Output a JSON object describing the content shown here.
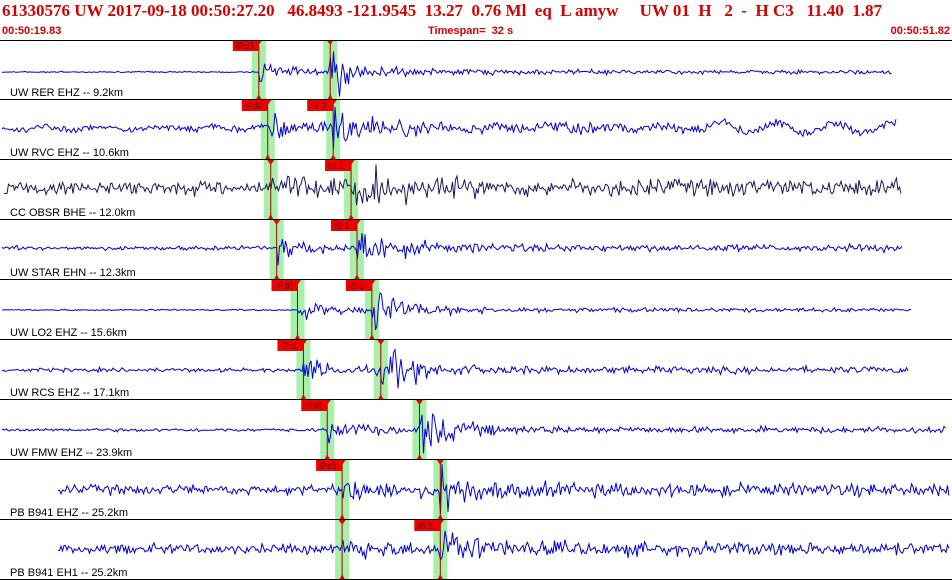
{
  "header": {
    "title": "61330576 UW 2017-09-18 00:50:27.20   46.8493 -121.9545  13.27  0.76 Ml  eq  L amyw     UW 01  H   2  -  H C3   11.40  1.87",
    "start_time": "00:50:19.83",
    "end_time": "00:50:51.82",
    "timespan_label": "Timespan=  32 s"
  },
  "colors": {
    "header_text": "#d40000",
    "trace": "#0000dd",
    "trace_broadband": "#1a1a5c",
    "pick_flag": "#ee0000",
    "pick_window": "#a8f0a8",
    "separator": "#000000"
  },
  "chart_data": {
    "type": "seismogram",
    "time_range": [
      "00:50:19.83",
      "00:50:51.82"
    ],
    "span_seconds": 32,
    "traces": [
      {
        "label": "UW RER EHZ -- 9.2km",
        "picks": [
          {
            "tag": "iPc0",
            "t": 8.7
          },
          {
            "tag": "",
            "t": 11.1
          }
        ],
        "broadband": false
      },
      {
        "label": "UW RVC EHZ -- 10.6km",
        "picks": [
          {
            "tag": "iPd0",
            "t": 9.0
          },
          {
            "tag": "iS 0",
            "t": 11.2
          }
        ],
        "broadband": false
      },
      {
        "label": "CC OBSR BHE -- 12.0km",
        "picks": [
          {
            "tag": "",
            "t": 9.1
          },
          {
            "tag": "iS 1",
            "t": 11.8
          }
        ],
        "broadband": true
      },
      {
        "label": "UW STAR EHN -- 12.3km",
        "picks": [
          {
            "tag": "",
            "t": 9.3
          },
          {
            "tag": "iS 1",
            "t": 12.0
          }
        ],
        "broadband": false
      },
      {
        "label": "UW LO2 EHZ -- 15.6km",
        "picks": [
          {
            "tag": "iPd0",
            "t": 10.0
          },
          {
            "tag": "iS 1",
            "t": 12.5
          }
        ],
        "broadband": false
      },
      {
        "label": "UW RCS EHZ -- 17.1km",
        "picks": [
          {
            "tag": "iPc1",
            "t": 10.2
          },
          {
            "tag": "",
            "t": 12.8
          }
        ],
        "broadband": false
      },
      {
        "label": "UW FMW EHZ -- 23.9km",
        "picks": [
          {
            "tag": "iPd0",
            "t": 11.0
          },
          {
            "tag": "",
            "t": 14.1
          }
        ],
        "broadband": false
      },
      {
        "label": "PB B941 EHZ -- 25.2km",
        "picks": [
          {
            "tag": "iPc1",
            "t": 11.5
          },
          {
            "tag": "",
            "t": 14.8
          }
        ],
        "broadband": false
      },
      {
        "label": "PB B941 EH1 -- 25.2km",
        "picks": [
          {
            "tag": "",
            "t": 11.5
          },
          {
            "tag": "iS 1",
            "t": 14.8
          }
        ],
        "broadband": false
      }
    ]
  }
}
